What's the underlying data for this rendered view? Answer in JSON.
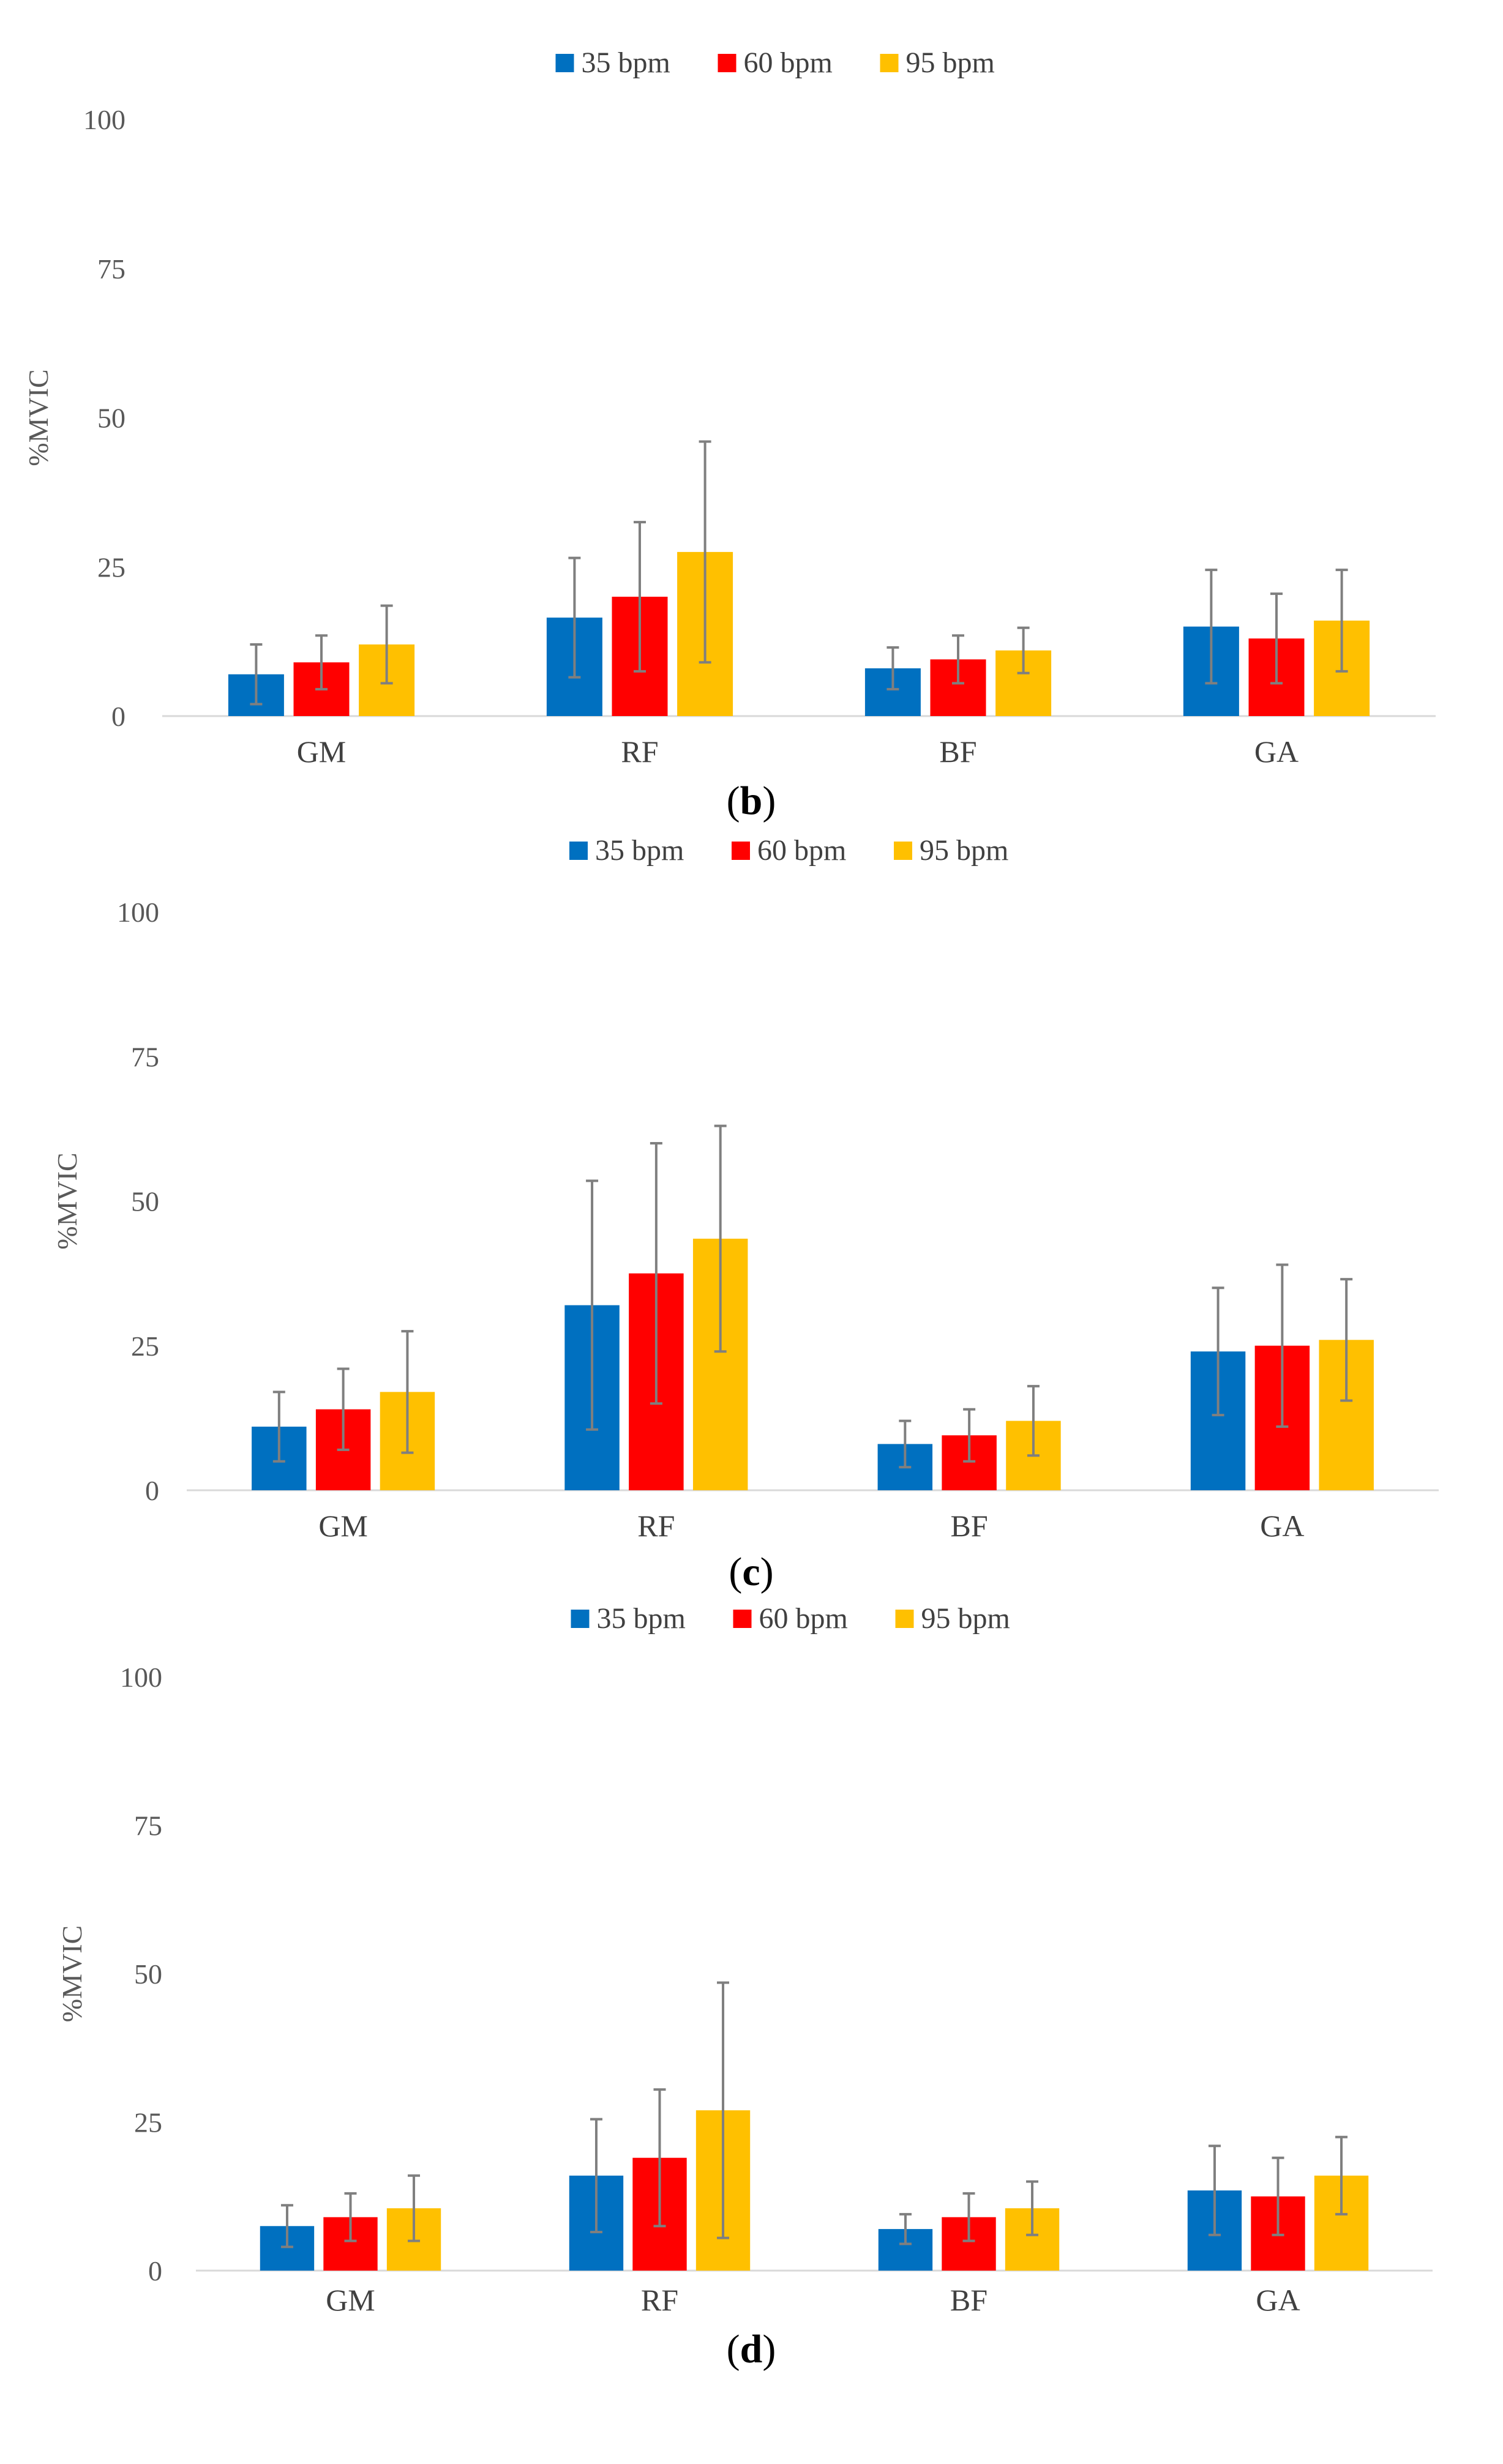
{
  "series_colors": [
    "#0070C0",
    "#FF0000",
    "#FFC000"
  ],
  "error_bar_color": "#7F7F7F",
  "chart_data": [
    {
      "type": "bar",
      "panel_label": "b",
      "categories": [
        "GM",
        "RF",
        "BF",
        "GA"
      ],
      "series": [
        {
          "name": "35 bpm",
          "values": [
            7,
            16.5,
            8,
            15
          ],
          "errors": [
            5,
            10,
            3.5,
            9.5
          ]
        },
        {
          "name": "60 bpm",
          "values": [
            9,
            20,
            9.5,
            13
          ],
          "errors": [
            4.5,
            12.5,
            4,
            7.5
          ]
        },
        {
          "name": "95 bpm",
          "values": [
            12,
            27.5,
            11,
            16
          ],
          "errors": [
            6.5,
            18.5,
            3.8,
            8.5
          ]
        }
      ],
      "ylabel": "%MVIC",
      "ylim": [
        0,
        100
      ],
      "yticks": [
        0,
        25,
        50,
        75,
        100
      ],
      "legend": "top-center",
      "grid": false
    },
    {
      "type": "bar",
      "panel_label": "c",
      "categories": [
        "GM",
        "RF",
        "BF",
        "GA"
      ],
      "series": [
        {
          "name": "35 bpm",
          "values": [
            11,
            32,
            8,
            24
          ],
          "errors": [
            6,
            21.5,
            4,
            11
          ]
        },
        {
          "name": "60 bpm",
          "values": [
            14,
            37.5,
            9.5,
            25
          ],
          "errors": [
            7,
            22.5,
            4.5,
            14
          ]
        },
        {
          "name": "95 bpm",
          "values": [
            17,
            43.5,
            12,
            26
          ],
          "errors": [
            10.5,
            19.5,
            6,
            10.5
          ]
        }
      ],
      "ylabel": "%MVIC",
      "ylim": [
        0,
        100
      ],
      "yticks": [
        0,
        25,
        50,
        75,
        100
      ],
      "legend": "top-center",
      "grid": false
    },
    {
      "type": "bar",
      "panel_label": "d",
      "categories": [
        "GM",
        "RF",
        "BF",
        "GA"
      ],
      "series": [
        {
          "name": "35 bpm",
          "values": [
            7.5,
            16,
            7,
            13.5
          ],
          "errors": [
            3.5,
            9.5,
            2.5,
            7.5
          ]
        },
        {
          "name": "60 bpm",
          "values": [
            9,
            19,
            9,
            12.5
          ],
          "errors": [
            4,
            11.5,
            4,
            6.5
          ]
        },
        {
          "name": "95 bpm",
          "values": [
            10.5,
            27,
            10.5,
            16
          ],
          "errors": [
            5.5,
            21.5,
            4.5,
            6.5
          ]
        }
      ],
      "ylabel": "%MVIC",
      "ylim": [
        0,
        100
      ],
      "yticks": [
        0,
        25,
        50,
        75,
        100
      ],
      "legend": "top-center",
      "grid": false
    }
  ]
}
